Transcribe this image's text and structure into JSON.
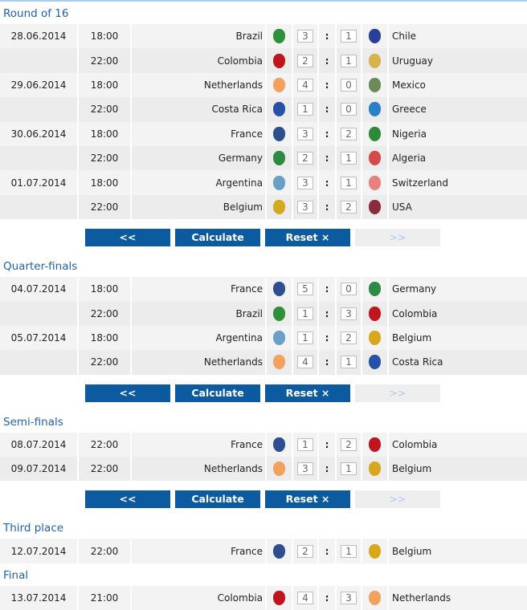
{
  "buttons": {
    "prev": "<<",
    "calculate": "Calculate",
    "reset": "Reset ×",
    "next": ">>"
  },
  "stages": [
    {
      "title": "Round of 16",
      "buttons": true,
      "matches": [
        {
          "date": "28.06.2014",
          "time": "18:00",
          "home": "Brazil",
          "hs": "3",
          "as": "1",
          "away": "Chile"
        },
        {
          "date": "",
          "time": "22:00",
          "home": "Colombia",
          "hs": "2",
          "as": "1",
          "away": "Uruguay"
        },
        {
          "date": "29.06.2014",
          "time": "18:00",
          "home": "Netherlands",
          "hs": "4",
          "as": "0",
          "away": "Mexico"
        },
        {
          "date": "",
          "time": "22:00",
          "home": "Costa Rica",
          "hs": "1",
          "as": "0",
          "away": "Greece"
        },
        {
          "date": "30.06.2014",
          "time": "18:00",
          "home": "France",
          "hs": "3",
          "as": "2",
          "away": "Nigeria"
        },
        {
          "date": "",
          "time": "22:00",
          "home": "Germany",
          "hs": "2",
          "as": "1",
          "away": "Algeria"
        },
        {
          "date": "01.07.2014",
          "time": "18:00",
          "home": "Argentina",
          "hs": "3",
          "as": "1",
          "away": "Switzerland"
        },
        {
          "date": "",
          "time": "22:00",
          "home": "Belgium",
          "hs": "3",
          "as": "2",
          "away": "USA"
        }
      ]
    },
    {
      "title": "Quarter-finals",
      "buttons": true,
      "matches": [
        {
          "date": "04.07.2014",
          "time": "18:00",
          "home": "France",
          "hs": "5",
          "as": "0",
          "away": "Germany"
        },
        {
          "date": "",
          "time": "22:00",
          "home": "Brazil",
          "hs": "1",
          "as": "3",
          "away": "Colombia"
        },
        {
          "date": "05.07.2014",
          "time": "18:00",
          "home": "Argentina",
          "hs": "1",
          "as": "2",
          "away": "Belgium"
        },
        {
          "date": "",
          "time": "22:00",
          "home": "Netherlands",
          "hs": "4",
          "as": "1",
          "away": "Costa Rica"
        }
      ]
    },
    {
      "title": "Semi-finals",
      "buttons": true,
      "matches": [
        {
          "date": "08.07.2014",
          "time": "22:00",
          "home": "France",
          "hs": "1",
          "as": "2",
          "away": "Colombia"
        },
        {
          "date": "09.07.2014",
          "time": "22:00",
          "home": "Netherlands",
          "hs": "3",
          "as": "1",
          "away": "Belgium"
        }
      ]
    },
    {
      "title": "Third place",
      "buttons": false,
      "matches": [
        {
          "date": "12.07.2014",
          "time": "22:00",
          "home": "France",
          "hs": "2",
          "as": "1",
          "away": "Belgium"
        }
      ]
    },
    {
      "title": "Final",
      "buttons": false,
      "matches": [
        {
          "date": "13.07.2014",
          "time": "21:00",
          "home": "Colombia",
          "hs": "4",
          "as": "3",
          "away": "Netherlands"
        }
      ]
    }
  ],
  "crest_colors": {
    "Brazil": "#2f8f3a",
    "Chile": "#2a3f9a",
    "Colombia": "#c0141e",
    "Uruguay": "#d8b24a",
    "Netherlands": "#f3a15e",
    "Mexico": "#6a8a5a",
    "Costa Rica": "#2750a8",
    "Greece": "#2a7fc8",
    "France": "#2d4f8f",
    "Nigeria": "#2e8a3a",
    "Germany": "#2c8a45",
    "Algeria": "#d44a4a",
    "Argentina": "#6aa0c8",
    "Switzerland": "#e88080",
    "Belgium": "#d6a81e",
    "USA": "#8a2a3a"
  }
}
